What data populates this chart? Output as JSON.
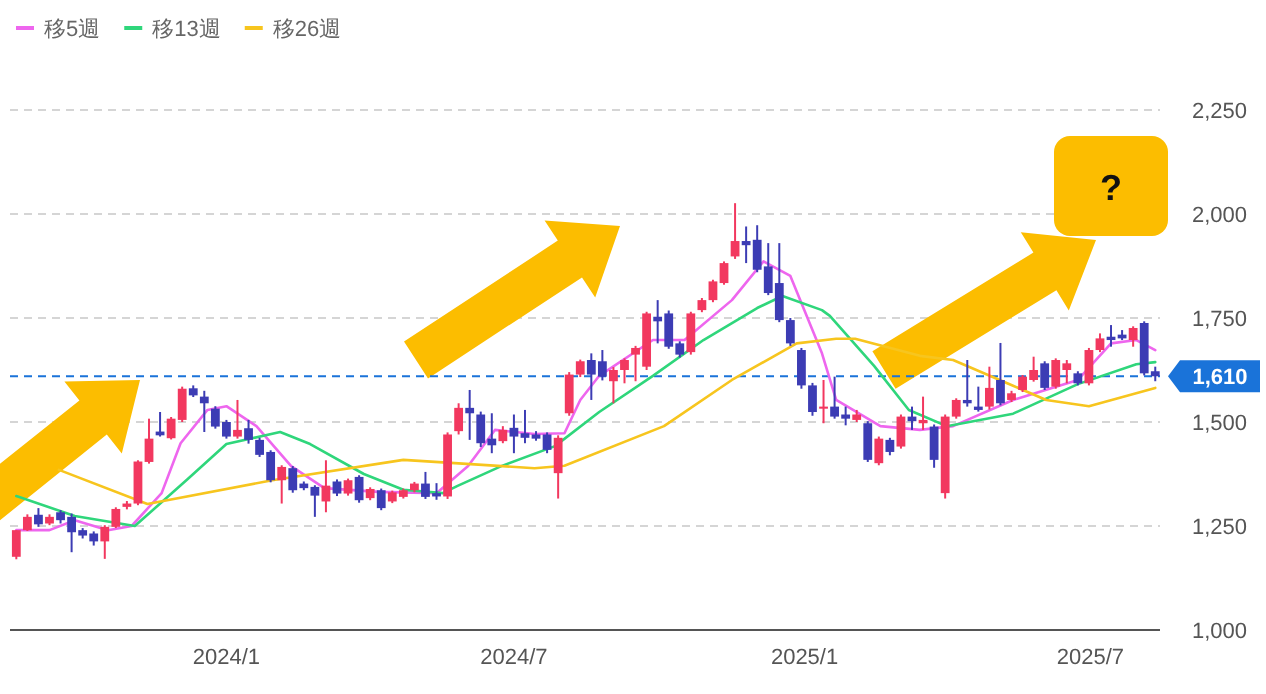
{
  "chart_data": {
    "type": "candlestick",
    "x": [
      "2023-08-21",
      "2023-08-28",
      "2023-09-04",
      "2023-09-11",
      "2023-09-18",
      "2023-09-25",
      "2023-10-02",
      "2023-10-09",
      "2023-10-16",
      "2023-10-23",
      "2023-10-30",
      "2023-11-06",
      "2023-11-13",
      "2023-11-20",
      "2023-11-27",
      "2023-12-04",
      "2023-12-11",
      "2023-12-18",
      "2023-12-25",
      "2024-01-01",
      "2024-01-08",
      "2024-01-15",
      "2024-01-22",
      "2024-01-29",
      "2024-02-05",
      "2024-02-12",
      "2024-02-19",
      "2024-02-26",
      "2024-03-04",
      "2024-03-11",
      "2024-03-18",
      "2024-03-25",
      "2024-04-01",
      "2024-04-08",
      "2024-04-15",
      "2024-04-22",
      "2024-04-29",
      "2024-05-06",
      "2024-05-13",
      "2024-05-20",
      "2024-05-27",
      "2024-06-03",
      "2024-06-10",
      "2024-06-17",
      "2024-06-24",
      "2024-07-01",
      "2024-07-08",
      "2024-07-15",
      "2024-07-22",
      "2024-07-29",
      "2024-08-05",
      "2024-08-12",
      "2024-08-19",
      "2024-08-26",
      "2024-09-02",
      "2024-09-09",
      "2024-09-16",
      "2024-09-23",
      "2024-09-30",
      "2024-10-07",
      "2024-10-14",
      "2024-10-21",
      "2024-10-28",
      "2024-11-04",
      "2024-11-11",
      "2024-11-18",
      "2024-11-25",
      "2024-12-02",
      "2024-12-09",
      "2024-12-16",
      "2024-12-23",
      "2024-12-30",
      "2025-01-06",
      "2025-01-13",
      "2025-01-20",
      "2025-01-27",
      "2025-02-03",
      "2025-02-10",
      "2025-02-17",
      "2025-02-24",
      "2025-03-03",
      "2025-03-10",
      "2025-03-17",
      "2025-03-24",
      "2025-03-31",
      "2025-04-07",
      "2025-04-14",
      "2025-04-21",
      "2025-04-28",
      "2025-05-05",
      "2025-05-12",
      "2025-05-19",
      "2025-05-26",
      "2025-06-02",
      "2025-06-09",
      "2025-06-16",
      "2025-06-23",
      "2025-06-30",
      "2025-07-07",
      "2025-07-14",
      "2025-07-21",
      "2025-07-28",
      "2025-08-04",
      "2025-08-11"
    ],
    "ohlc": [
      [
        1176,
        1240,
        1170,
        1240
      ],
      [
        1240,
        1278,
        1238,
        1272
      ],
      [
        1277,
        1293,
        1248,
        1254
      ],
      [
        1256,
        1278,
        1252,
        1272
      ],
      [
        1283,
        1288,
        1256,
        1264
      ],
      [
        1272,
        1280,
        1187,
        1235
      ],
      [
        1240,
        1245,
        1220,
        1227
      ],
      [
        1232,
        1237,
        1203,
        1213
      ],
      [
        1213,
        1252,
        1171,
        1248
      ],
      [
        1248,
        1295,
        1245,
        1291
      ],
      [
        1296,
        1310,
        1290,
        1304
      ],
      [
        1304,
        1408,
        1300,
        1405
      ],
      [
        1404,
        1508,
        1400,
        1460
      ],
      [
        1477,
        1524,
        1465,
        1468
      ],
      [
        1461,
        1512,
        1458,
        1508
      ],
      [
        1505,
        1585,
        1500,
        1580
      ],
      [
        1581,
        1588,
        1560,
        1564
      ],
      [
        1561,
        1575,
        1476,
        1545
      ],
      [
        1532,
        1538,
        1484,
        1489
      ],
      [
        1500,
        1505,
        1460,
        1465
      ],
      [
        1465,
        1553,
        1460,
        1481
      ],
      [
        1485,
        1505,
        1448,
        1457
      ],
      [
        1457,
        1462,
        1416,
        1421
      ],
      [
        1428,
        1432,
        1355,
        1360
      ],
      [
        1360,
        1396,
        1304,
        1392
      ],
      [
        1389,
        1394,
        1330,
        1336
      ],
      [
        1352,
        1357,
        1336,
        1341
      ],
      [
        1344,
        1348,
        1272,
        1323
      ],
      [
        1309,
        1408,
        1283,
        1347
      ],
      [
        1357,
        1362,
        1322,
        1328
      ],
      [
        1328,
        1364,
        1323,
        1360
      ],
      [
        1368,
        1372,
        1306,
        1312
      ],
      [
        1317,
        1343,
        1312,
        1339
      ],
      [
        1336,
        1340,
        1288,
        1293
      ],
      [
        1309,
        1335,
        1305,
        1331
      ],
      [
        1320,
        1340,
        1316,
        1336
      ],
      [
        1336,
        1356,
        1331,
        1352
      ],
      [
        1352,
        1380,
        1315,
        1320
      ],
      [
        1329,
        1353,
        1313,
        1321
      ],
      [
        1321,
        1475,
        1315,
        1470
      ],
      [
        1478,
        1545,
        1470,
        1534
      ],
      [
        1534,
        1577,
        1457,
        1521
      ],
      [
        1518,
        1525,
        1440,
        1449
      ],
      [
        1460,
        1521,
        1425,
        1444
      ],
      [
        1454,
        1490,
        1449,
        1481
      ],
      [
        1486,
        1518,
        1425,
        1465
      ],
      [
        1473,
        1529,
        1449,
        1462
      ],
      [
        1470,
        1478,
        1455,
        1460
      ],
      [
        1470,
        1475,
        1425,
        1433
      ],
      [
        1377,
        1468,
        1316,
        1462
      ],
      [
        1521,
        1620,
        1515,
        1614
      ],
      [
        1614,
        1650,
        1608,
        1646
      ],
      [
        1649,
        1665,
        1553,
        1614
      ],
      [
        1646,
        1673,
        1600,
        1609
      ],
      [
        1598,
        1632,
        1545,
        1625
      ],
      [
        1625,
        1653,
        1593,
        1649
      ],
      [
        1662,
        1683,
        1598,
        1678
      ],
      [
        1633,
        1765,
        1625,
        1761
      ],
      [
        1753,
        1793,
        1689,
        1742
      ],
      [
        1761,
        1768,
        1676,
        1681
      ],
      [
        1689,
        1694,
        1655,
        1662
      ],
      [
        1668,
        1765,
        1662,
        1761
      ],
      [
        1769,
        1798,
        1764,
        1793
      ],
      [
        1793,
        1842,
        1788,
        1838
      ],
      [
        1834,
        1886,
        1830,
        1882
      ],
      [
        1898,
        2026,
        1892,
        1935
      ],
      [
        1935,
        1970,
        1882,
        1925
      ],
      [
        1938,
        1973,
        1860,
        1866
      ],
      [
        1874,
        1930,
        1805,
        1810
      ],
      [
        1834,
        1930,
        1740,
        1745
      ],
      [
        1745,
        1750,
        1683,
        1689
      ],
      [
        1673,
        1678,
        1580,
        1588
      ],
      [
        1588,
        1594,
        1515,
        1524
      ],
      [
        1532,
        1601,
        1497,
        1537
      ],
      [
        1537,
        1609,
        1508,
        1513
      ],
      [
        1518,
        1537,
        1492,
        1508
      ],
      [
        1505,
        1529,
        1500,
        1518
      ],
      [
        1497,
        1502,
        1404,
        1409
      ],
      [
        1401,
        1465,
        1396,
        1460
      ],
      [
        1457,
        1462,
        1420,
        1428
      ],
      [
        1441,
        1518,
        1436,
        1513
      ],
      [
        1513,
        1537,
        1481,
        1502
      ],
      [
        1497,
        1561,
        1481,
        1505
      ],
      [
        1489,
        1494,
        1390,
        1409
      ],
      [
        1329,
        1518,
        1316,
        1513
      ],
      [
        1513,
        1557,
        1508,
        1553
      ],
      [
        1553,
        1649,
        1537,
        1545
      ],
      [
        1537,
        1585,
        1525,
        1529
      ],
      [
        1537,
        1633,
        1530,
        1582
      ],
      [
        1601,
        1690,
        1540,
        1545
      ],
      [
        1553,
        1575,
        1548,
        1569
      ],
      [
        1577,
        1613,
        1572,
        1609
      ],
      [
        1601,
        1657,
        1597,
        1625
      ],
      [
        1641,
        1646,
        1577,
        1582
      ],
      [
        1585,
        1653,
        1580,
        1649
      ],
      [
        1625,
        1649,
        1593,
        1641
      ],
      [
        1617,
        1622,
        1588,
        1593
      ],
      [
        1593,
        1678,
        1588,
        1673
      ],
      [
        1673,
        1713,
        1668,
        1701
      ],
      [
        1705,
        1733,
        1681,
        1697
      ],
      [
        1710,
        1721,
        1697,
        1701
      ],
      [
        1697,
        1730,
        1681,
        1726
      ],
      [
        1738,
        1742,
        1612,
        1617
      ],
      [
        1622,
        1633,
        1598,
        1610
      ]
    ],
    "series": [
      {
        "type": "line",
        "name": "移5週",
        "color": "#ee66ee",
        "x": [
          "2023-08-21",
          "2023-09-11",
          "2023-09-27",
          "2023-10-18",
          "2023-11-02",
          "2023-11-21",
          "2023-12-03",
          "2023-12-20",
          "2024-01-01",
          "2024-01-20",
          "2024-02-11",
          "2024-03-03",
          "2024-04-06",
          "2024-05-13",
          "2024-06-02",
          "2024-06-19",
          "2024-07-14",
          "2024-08-02",
          "2024-08-12",
          "2024-08-24",
          "2024-09-27",
          "2024-10-17",
          "2024-11-16",
          "2024-12-06",
          "2024-12-23",
          "2025-01-12",
          "2025-01-21",
          "2025-02-18",
          "2025-03-15",
          "2025-04-05",
          "2025-05-13",
          "2025-06-23",
          "2025-07-14",
          "2025-07-30",
          "2025-08-11"
        ],
        "values": [
          1240,
          1240,
          1264,
          1240,
          1250,
          1329,
          1449,
          1529,
          1538,
          1490,
          1394,
          1341,
          1332,
          1329,
          1394,
          1481,
          1471,
          1473,
          1553,
          1611,
          1697,
          1697,
          1793,
          1886,
          1851,
          1665,
          1553,
          1490,
          1481,
          1490,
          1553,
          1601,
          1689,
          1697,
          1673
        ]
      },
      {
        "type": "line",
        "name": "移13週",
        "color": "#2fd67b",
        "x": [
          "2023-08-21",
          "2023-09-27",
          "2023-11-04",
          "2023-12-07",
          "2024-01-01",
          "2024-02-04",
          "2024-02-23",
          "2024-03-28",
          "2024-04-22",
          "2024-05-17",
          "2024-05-26",
          "2024-06-23",
          "2024-07-27",
          "2024-08-24",
          "2024-09-27",
          "2024-10-29",
          "2024-12-02",
          "2024-12-18",
          "2025-01-12",
          "2025-01-17",
          "2025-02-14",
          "2025-03-08",
          "2025-04-01",
          "2025-05-13",
          "2025-06-23",
          "2025-07-30",
          "2025-08-11"
        ],
        "values": [
          1322,
          1274,
          1250,
          1361,
          1447,
          1476,
          1447,
          1375,
          1337,
          1329,
          1346,
          1394,
          1442,
          1524,
          1611,
          1697,
          1774,
          1803,
          1769,
          1755,
          1635,
          1529,
          1490,
          1520,
          1591,
          1639,
          1644
        ]
      },
      {
        "type": "line",
        "name": "移26週",
        "color": "#f7c51e",
        "x": [
          "2023-09-17",
          "2023-11-12",
          "2024-01-30",
          "2024-04-22",
          "2024-07-14",
          "2024-08-02",
          "2024-10-04",
          "2024-11-16",
          "2024-12-27",
          "2025-01-21",
          "2025-02-02",
          "2025-03-15",
          "2025-04-05",
          "2025-05-13",
          "2025-06-03",
          "2025-06-30",
          "2025-08-11"
        ],
        "values": [
          1385,
          1303,
          1360,
          1409,
          1389,
          1395,
          1490,
          1601,
          1689,
          1700,
          1700,
          1659,
          1649,
          1587,
          1553,
          1538,
          1582
        ]
      }
    ],
    "xlim": [
      "2023-08-17",
      "2025-08-14"
    ],
    "xticks": [
      {
        "value": "2024-01-01",
        "label": "2024/1"
      },
      {
        "value": "2024-07-01",
        "label": "2024/7"
      },
      {
        "value": "2025-01-01",
        "label": "2025/1"
      },
      {
        "value": "2025-07-01",
        "label": "2025/7"
      }
    ],
    "ylim": [
      1000,
      2250
    ],
    "yticks": [
      {
        "value": 1000,
        "label": "1,000"
      },
      {
        "value": 1250,
        "label": "1,250"
      },
      {
        "value": 1500,
        "label": "1,500"
      },
      {
        "value": 1750,
        "label": "1,750"
      },
      {
        "value": 2000,
        "label": "2,000"
      },
      {
        "value": 2250,
        "label": "2,250"
      }
    ],
    "grid": "y",
    "legend": "top left",
    "ref_lines": [
      {
        "axis": "y",
        "value": 1610,
        "label": "1,610",
        "color": "#1a73d9",
        "line_style": "dashed"
      }
    ],
    "annotations": [
      "?"
    ]
  }
}
